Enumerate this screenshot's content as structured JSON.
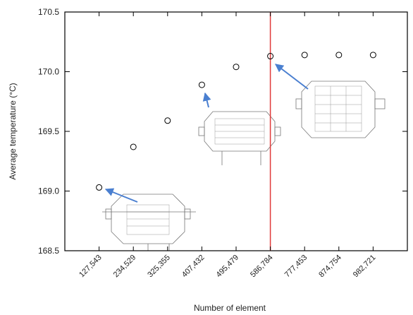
{
  "chart_data": {
    "type": "scatter",
    "x_label": "Number of element",
    "y_label": "Average temperature (°C)",
    "categories": [
      "127,543",
      "234,529",
      "325,355",
      "407,432",
      "495,479",
      "586,784",
      "777,453",
      "874,754",
      "982,721"
    ],
    "values": [
      169.03,
      169.37,
      169.59,
      169.89,
      170.04,
      170.13,
      170.14,
      170.14,
      170.14
    ],
    "color": "#000000",
    "ylim": [
      168.5,
      170.5
    ],
    "yticks": [
      168.5,
      {
        "value": 169,
        "label": "169.0"
      },
      169.5,
      {
        "value": 170,
        "label": "170.0"
      },
      170.5
    ],
    "vline_category_index": 5,
    "vline_color": "#e03a3a"
  }
}
